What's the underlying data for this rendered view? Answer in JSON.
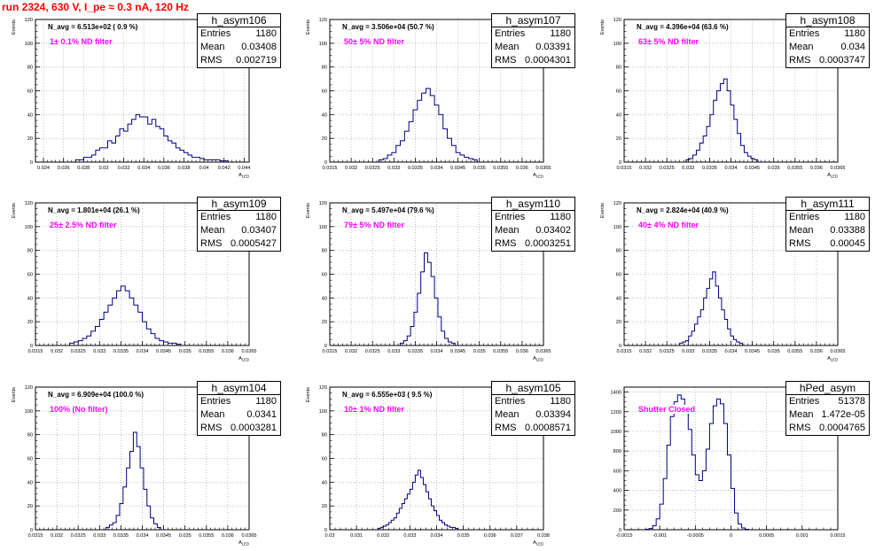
{
  "header": {
    "title": "run 2324,   630 V, I_pe ≈ 0.3 nA, 120 Hz"
  },
  "colors": {
    "histogram": "#00007f",
    "title": "#ff0000",
    "filter_text": "#ff00ff",
    "grid": "#b4b4b4"
  },
  "chart_data": [
    {
      "type": "histogram",
      "name": "h_asym106",
      "ylabel": "Events",
      "xlabel": "A_LED",
      "navg": "N_avg = 6.513e+02 ( 0.9 %)",
      "filter_label": "1± 0.1% ND filter",
      "stats": {
        "entries": "1180",
        "mean": "0.03408",
        "rms": "0.002719"
      },
      "xlim": [
        0.0232,
        0.0445
      ],
      "ylim": [
        0,
        120
      ],
      "xticks": [
        0.024,
        0.026,
        0.028,
        0.03,
        0.032,
        0.034,
        0.036,
        0.038,
        0.04,
        0.042,
        0.044
      ],
      "xtick_labels": [
        "0.024",
        "0.026",
        "0.028",
        "0.03",
        "0.032",
        "0.034",
        "0.036",
        "0.038",
        "0.04",
        "0.042",
        "0.044"
      ],
      "yticks": [
        0,
        20,
        40,
        60,
        80,
        100,
        120
      ],
      "hist": {
        "start": 0.0272,
        "width": 0.0004,
        "counts": [
          2,
          2,
          4,
          4,
          6,
          10,
          12,
          12,
          18,
          16,
          22,
          28,
          26,
          32,
          36,
          40,
          38,
          38,
          32,
          36,
          30,
          28,
          22,
          18,
          16,
          12,
          10,
          8,
          6,
          4,
          4,
          3,
          2,
          2,
          2,
          2,
          1,
          1
        ]
      }
    },
    {
      "type": "histogram",
      "name": "h_asym107",
      "ylabel": "Events",
      "xlabel": "A_LED",
      "navg": "N_avg = 3.506e+04 (50.7 %)",
      "filter_label": "50± 5% ND filter",
      "stats": {
        "entries": "1180",
        "mean": "0.03391",
        "rms": "0.0004301"
      },
      "xlim": [
        0.0315,
        0.0365
      ],
      "ylim": [
        0,
        120
      ],
      "xticks": [
        0.0315,
        0.032,
        0.0325,
        0.033,
        0.0335,
        0.034,
        0.0345,
        0.035,
        0.0355,
        0.036,
        0.0365
      ],
      "xtick_labels": [
        "0.0315",
        "0.032",
        "0.0325",
        "0.033",
        "0.0335",
        "0.034",
        "0.0345",
        "0.035",
        "0.0355",
        "0.036",
        "0.0365"
      ],
      "yticks": [
        0,
        20,
        40,
        60,
        80,
        100,
        120
      ],
      "hist": {
        "start": 0.03265,
        "width": 0.0001,
        "counts": [
          2,
          3,
          6,
          8,
          14,
          18,
          26,
          34,
          44,
          52,
          58,
          62,
          56,
          48,
          40,
          28,
          20,
          14,
          8,
          6,
          4,
          3,
          2
        ]
      }
    },
    {
      "type": "histogram",
      "name": "h_asym108",
      "ylabel": "Events",
      "xlabel": "A_LED",
      "navg": "N_avg = 4.396e+04 (63.6 %)",
      "filter_label": "63± 5% ND filter",
      "stats": {
        "entries": "1180",
        "mean": "0.034",
        "rms": "0.0003747"
      },
      "xlim": [
        0.0315,
        0.0365
      ],
      "ylim": [
        0,
        120
      ],
      "xticks": [
        0.0315,
        0.032,
        0.0325,
        0.033,
        0.0335,
        0.034,
        0.0345,
        0.035,
        0.0355,
        0.036,
        0.0365
      ],
      "xtick_labels": [
        "0.0315",
        "0.032",
        "0.0325",
        "0.033",
        "0.0335",
        "0.034",
        "0.0345",
        "0.035",
        "0.0355",
        "0.036",
        "0.0365"
      ],
      "yticks": [
        0,
        20,
        40,
        60,
        80,
        100,
        120
      ],
      "hist": {
        "start": 0.03295,
        "width": 8e-05,
        "counts": [
          2,
          3,
          6,
          10,
          16,
          22,
          30,
          40,
          52,
          60,
          66,
          70,
          60,
          48,
          36,
          24,
          14,
          8,
          5,
          3,
          2
        ]
      }
    },
    {
      "type": "histogram",
      "name": "h_asym109",
      "ylabel": "Events",
      "xlabel": "A_LED",
      "navg": "N_avg = 1.801e+04 (26.1 %)",
      "filter_label": "25± 2.5% ND filter",
      "stats": {
        "entries": "1180",
        "mean": "0.03407",
        "rms": "0.0005427"
      },
      "xlim": [
        0.0315,
        0.0365
      ],
      "ylim": [
        0,
        120
      ],
      "xticks": [
        0.0315,
        0.032,
        0.0325,
        0.033,
        0.0335,
        0.034,
        0.0345,
        0.035,
        0.0355,
        0.036,
        0.0365
      ],
      "xtick_labels": [
        "0.0315",
        "0.032",
        "0.0325",
        "0.033",
        "0.0335",
        "0.034",
        "0.0345",
        "0.035",
        "0.0355",
        "0.036",
        "0.0365"
      ],
      "yticks": [
        0,
        20,
        40,
        60,
        80,
        100,
        120
      ],
      "hist": {
        "start": 0.0323,
        "width": 0.0001,
        "counts": [
          2,
          3,
          4,
          6,
          8,
          12,
          16,
          22,
          28,
          34,
          40,
          46,
          50,
          46,
          40,
          34,
          28,
          20,
          14,
          10,
          6,
          4,
          3,
          2,
          2,
          1
        ]
      }
    },
    {
      "type": "histogram",
      "name": "h_asym110",
      "ylabel": "Events",
      "xlabel": "A_LED",
      "navg": "N_avg = 5.497e+04 (79.6 %)",
      "filter_label": "79± 5% ND filter",
      "stats": {
        "entries": "1180",
        "mean": "0.03402",
        "rms": "0.0003251"
      },
      "xlim": [
        0.0315,
        0.0365
      ],
      "ylim": [
        0,
        120
      ],
      "xticks": [
        0.0315,
        0.032,
        0.0325,
        0.033,
        0.0335,
        0.034,
        0.0345,
        0.035,
        0.0355,
        0.036,
        0.0365
      ],
      "xtick_labels": [
        "0.0315",
        "0.032",
        "0.0325",
        "0.033",
        "0.0335",
        "0.034",
        "0.0345",
        "0.035",
        "0.0355",
        "0.036",
        "0.0365"
      ],
      "yticks": [
        0,
        20,
        40,
        60,
        80,
        100,
        120
      ],
      "hist": {
        "start": 0.03315,
        "width": 8e-05,
        "counts": [
          2,
          4,
          8,
          16,
          28,
          44,
          62,
          78,
          70,
          58,
          40,
          24,
          12,
          6,
          3,
          2
        ]
      }
    },
    {
      "type": "histogram",
      "name": "h_asym111",
      "ylabel": "Events",
      "xlabel": "A_LED",
      "navg": "N_avg = 2.824e+04 (40.9 %)",
      "filter_label": "40± 4% ND filter",
      "stats": {
        "entries": "1180",
        "mean": "0.03388",
        "rms": "0.00045"
      },
      "xlim": [
        0.0315,
        0.0365
      ],
      "ylim": [
        0,
        120
      ],
      "xticks": [
        0.0315,
        0.032,
        0.0325,
        0.033,
        0.0335,
        0.034,
        0.0345,
        0.035,
        0.0355,
        0.036,
        0.0365
      ],
      "xtick_labels": [
        "0.0315",
        "0.032",
        "0.0325",
        "0.033",
        "0.0335",
        "0.034",
        "0.0345",
        "0.035",
        "0.0355",
        "0.036",
        "0.0365"
      ],
      "yticks": [
        0,
        20,
        40,
        60,
        80,
        100,
        120
      ],
      "hist": {
        "start": 0.0328,
        "width": 7e-05,
        "counts": [
          2,
          3,
          4,
          8,
          12,
          18,
          24,
          30,
          40,
          48,
          56,
          62,
          50,
          40,
          30,
          22,
          14,
          8,
          5,
          3,
          2
        ]
      }
    },
    {
      "type": "histogram",
      "name": "h_asym104",
      "ylabel": "Events",
      "xlabel": "A_LED",
      "navg": "N_avg = 6.909e+04 (100.0 %)",
      "filter_label": "100% (No filter)",
      "stats": {
        "entries": "1180",
        "mean": "0.0341",
        "rms": "0.0003281"
      },
      "xlim": [
        0.0315,
        0.0365
      ],
      "ylim": [
        0,
        120
      ],
      "xticks": [
        0.0315,
        0.032,
        0.0325,
        0.033,
        0.0335,
        0.034,
        0.0345,
        0.035,
        0.0355,
        0.036,
        0.0365
      ],
      "xtick_labels": [
        "0.0315",
        "0.032",
        "0.0325",
        "0.033",
        "0.0335",
        "0.034",
        "0.0345",
        "0.035",
        "0.0355",
        "0.036",
        "0.0365"
      ],
      "yticks": [
        0,
        20,
        40,
        60,
        80,
        100,
        120
      ],
      "hist": {
        "start": 0.03315,
        "width": 8e-05,
        "counts": [
          2,
          4,
          6,
          12,
          22,
          36,
          52,
          66,
          82,
          70,
          52,
          34,
          20,
          10,
          5,
          2
        ]
      }
    },
    {
      "type": "histogram",
      "name": "h_asym105",
      "ylabel": "Events",
      "xlabel": "A_LED",
      "navg": "N_avg = 6.555e+03 ( 9.5 %)",
      "filter_label": "10± 1% ND filter",
      "stats": {
        "entries": "1180",
        "mean": "0.03394",
        "rms": "0.0008571"
      },
      "xlim": [
        0.03,
        0.038
      ],
      "ylim": [
        0,
        120
      ],
      "xticks": [
        0.03,
        0.031,
        0.032,
        0.033,
        0.034,
        0.035,
        0.036,
        0.037,
        0.038
      ],
      "xtick_labels": [
        "0.03",
        "0.031",
        "0.032",
        "0.033",
        "0.034",
        "0.035",
        "0.036",
        "0.037",
        "0.038"
      ],
      "yticks": [
        0,
        20,
        40,
        60,
        80,
        100,
        120
      ],
      "hist": {
        "start": 0.0318,
        "width": 0.0001,
        "counts": [
          1,
          2,
          3,
          4,
          6,
          8,
          10,
          14,
          18,
          22,
          26,
          30,
          34,
          40,
          46,
          50,
          44,
          38,
          32,
          26,
          20,
          16,
          12,
          8,
          6,
          4,
          3,
          2,
          2,
          1
        ]
      }
    },
    {
      "type": "histogram",
      "name": "hPed_asym",
      "ylabel": "",
      "xlabel": "",
      "navg": "",
      "filter_label": "Shutter Closed",
      "stats": {
        "entries": "51378",
        "mean": "1.472e-05",
        "rms": "0.0004765"
      },
      "xlim": [
        -0.0015,
        0.0015
      ],
      "ylim": [
        0,
        1450
      ],
      "xticks": [
        -0.0015,
        -0.001,
        -0.0005,
        0,
        0.0005,
        0.001,
        0.0015
      ],
      "xtick_labels": [
        "-0.0015",
        "-0.001",
        "-0.0005",
        "0",
        "0.0005",
        "0.001",
        "0.0015"
      ],
      "yticks": [
        0,
        200,
        400,
        600,
        800,
        1000,
        1200,
        1400
      ],
      "hist": {
        "start": -0.0012,
        "width": 5e-05,
        "counts": [
          4,
          12,
          40,
          110,
          260,
          520,
          860,
          1150,
          1300,
          1370,
          1330,
          1220,
          1020,
          760,
          560,
          500,
          600,
          820,
          1080,
          1260,
          1330,
          1280,
          1080,
          760,
          420,
          170,
          60,
          18,
          5
        ]
      }
    }
  ]
}
